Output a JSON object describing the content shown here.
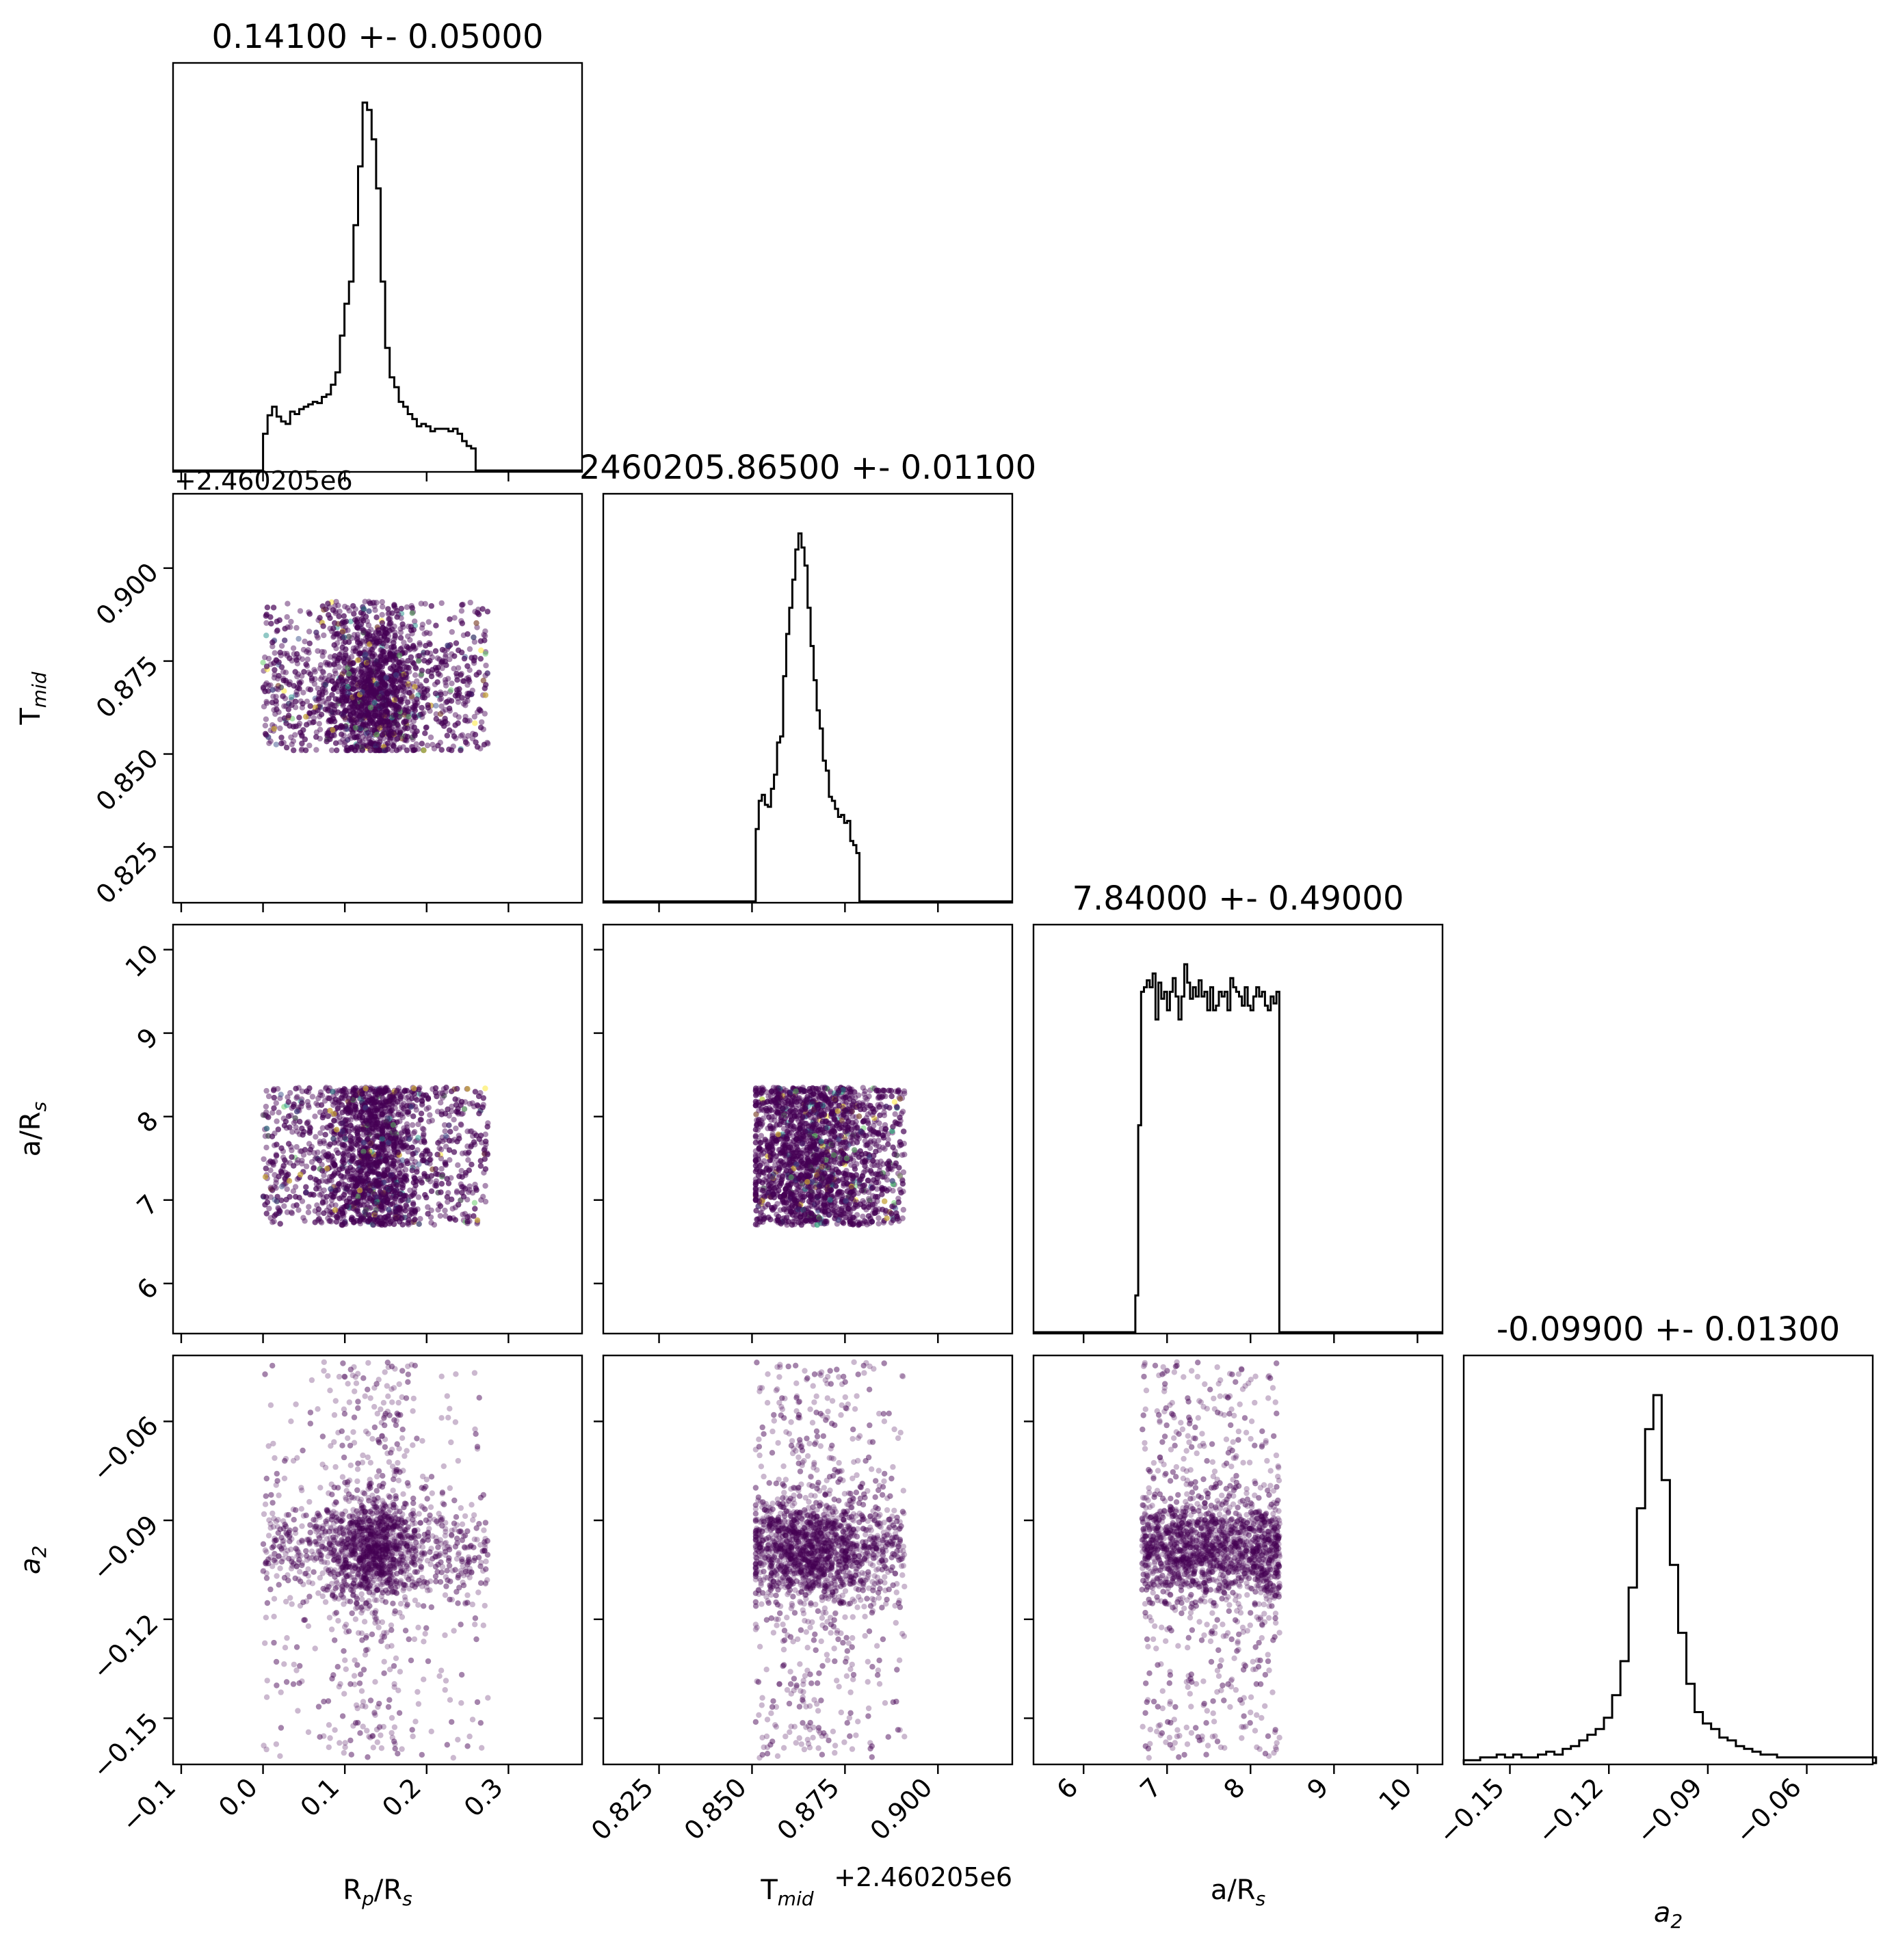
{
  "chart_data": {
    "type": "scatter",
    "subtype": "corner-plot",
    "parameters": [
      {
        "key": "rp",
        "label": "R",
        "label_sub": "p",
        "label_rest": "/R",
        "label_sub2": "s",
        "range": [
          -0.11,
          0.39
        ],
        "ticks": [
          -0.1,
          0.0,
          0.1,
          0.2,
          0.3
        ],
        "tick_labels": [
          "−0.1",
          "0.0",
          "0.1",
          "0.2",
          "0.3"
        ],
        "title": "0.14100 +- 0.05000",
        "offset_label": ""
      },
      {
        "key": "tmid",
        "label": "T",
        "label_sub": "mid",
        "label_rest": "",
        "label_sub2": "",
        "range": [
          0.81,
          0.92
        ],
        "ticks": [
          0.825,
          0.85,
          0.875,
          0.9
        ],
        "tick_labels": [
          "0.825",
          "0.850",
          "0.875",
          "0.900"
        ],
        "title": "2460205.86500 +- 0.01100",
        "offset_label": "+2.460205e6"
      },
      {
        "key": "ars",
        "label": "a/R",
        "label_sub": "s",
        "label_rest": "",
        "label_sub2": "",
        "range": [
          5.4,
          10.3
        ],
        "ticks": [
          6,
          7,
          8,
          9,
          10
        ],
        "tick_labels": [
          "6",
          "7",
          "8",
          "9",
          "10"
        ],
        "title": "7.84000 +- 0.49000",
        "offset_label": ""
      },
      {
        "key": "a2",
        "label": "a",
        "label_sub": "2",
        "label_rest": "",
        "label_sub2": "",
        "range": [
          -0.164,
          -0.04
        ],
        "ticks": [
          -0.15,
          -0.12,
          -0.09,
          -0.06
        ],
        "tick_labels": [
          "−0.15",
          "−0.12",
          "−0.09",
          "−0.06"
        ],
        "title": "-0.09900 +- 0.01300",
        "offset_label": ""
      }
    ],
    "histograms": {
      "rp": {
        "bin_start": 0.0,
        "bin_width": 0.00553,
        "counts": [
          30,
          45,
          52,
          44,
          40,
          38,
          48,
          46,
          50,
          52,
          54,
          56,
          55,
          60,
          62,
          70,
          80,
          110,
          136,
          154,
          200,
          248,
          300,
          294,
          270,
          230,
          154,
          100,
          76,
          68,
          56,
          52,
          46,
          42,
          36,
          38,
          36,
          32,
          34,
          34,
          34,
          32,
          34,
          30,
          24,
          20,
          18,
          0,
          0,
          0
        ]
      },
      "tmid": {
        "bin_start": 0.851,
        "bin_width": 0.00082,
        "counts": [
          36,
          50,
          53,
          48,
          47,
          56,
          63,
          79,
          82,
          112,
          133,
          146,
          160,
          175,
          183,
          176,
          167,
          146,
          127,
          110,
          95,
          86,
          70,
          65,
          52,
          50,
          46,
          42,
          43,
          39,
          40,
          30,
          28,
          24,
          0,
          0,
          0,
          0,
          0,
          0,
          0,
          0,
          0,
          0,
          0,
          0,
          0,
          0,
          0,
          0
        ]
      },
      "ars": {
        "bin_start": 6.62,
        "bin_width": 0.0345,
        "counts": [
          16,
          90,
          148,
          150,
          153,
          150,
          156,
          136,
          152,
          145,
          148,
          140,
          148,
          154,
          146,
          136,
          146,
          160,
          152,
          145,
          150,
          146,
          153,
          146,
          148,
          140,
          150,
          140,
          142,
          148,
          146,
          148,
          140,
          154,
          150,
          148,
          146,
          142,
          150,
          142,
          140,
          146,
          150,
          146,
          148,
          142,
          140,
          146,
          143,
          148
        ]
      },
      "a2": {
        "bin_start": -0.164,
        "bin_width": 0.0025,
        "counts": [
          1,
          1,
          2,
          2,
          3,
          2,
          3,
          2,
          2,
          3,
          4,
          3,
          5,
          6,
          8,
          10,
          12,
          16,
          24,
          36,
          62,
          90,
          118,
          130,
          100,
          70,
          46,
          28,
          18,
          14,
          12,
          9,
          8,
          6,
          5,
          4,
          3,
          3,
          2,
          2,
          2,
          2,
          2,
          2,
          2,
          2,
          2,
          2,
          2,
          2
        ]
      }
    },
    "samples_summary": "Scatter points are random MCMC samples; density shown with viridis-coloured points (mostly dark purple #440154).",
    "colors": {
      "points": "#440154",
      "accent_points": [
        "#440154",
        "#3b528b",
        "#21918c",
        "#5ec962",
        "#fde725"
      ],
      "hist": "#000000",
      "frame": "#000000"
    },
    "grid": false
  }
}
